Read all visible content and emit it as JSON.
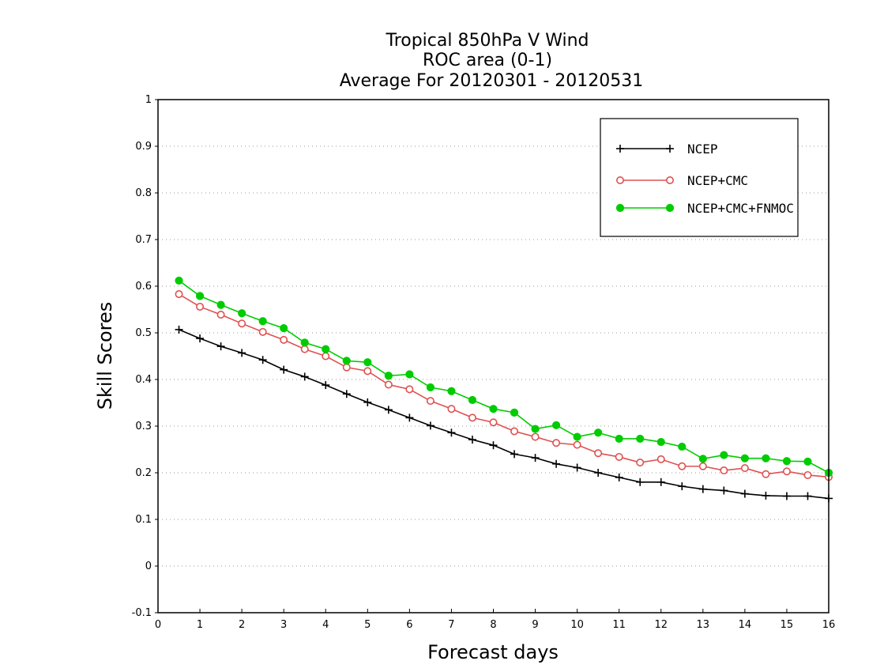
{
  "chart_data": {
    "type": "line",
    "title_lines": [
      "Tropical 850hPa V Wind",
      "ROC area (0-1)",
      "Average For 20120301 - 20120531"
    ],
    "xlabel": "Forecast days",
    "ylabel": "Skill Scores",
    "xlim": [
      0,
      16
    ],
    "ylim": [
      -0.1,
      1
    ],
    "x_ticks": [
      0,
      1,
      2,
      3,
      4,
      5,
      6,
      7,
      8,
      9,
      10,
      11,
      12,
      13,
      14,
      15,
      16
    ],
    "y_ticks": [
      -0.1,
      0,
      0.1,
      0.2,
      0.3,
      0.4,
      0.5,
      0.6,
      0.7,
      0.8,
      0.9,
      1
    ],
    "y_tick_labels": [
      "-0.1",
      "0",
      "0.1",
      "0.2",
      "0.3",
      "0.4",
      "0.5",
      "0.6",
      "0.7",
      "0.8",
      "0.9",
      "1"
    ],
    "grid": "horizontal dotted",
    "legend_position": "top-right",
    "x": [
      0.5,
      1,
      1.5,
      2,
      2.5,
      3,
      3.5,
      4,
      4.5,
      5,
      5.5,
      6,
      6.5,
      7,
      7.5,
      8,
      8.5,
      9,
      9.5,
      10,
      10.5,
      11,
      11.5,
      12,
      12.5,
      13,
      13.5,
      14,
      14.5,
      15,
      15.5,
      16
    ],
    "series": [
      {
        "name": "NCEP",
        "color": "#000000",
        "marker": "plus",
        "values": [
          0.507,
          0.488,
          0.471,
          0.457,
          0.442,
          0.421,
          0.406,
          0.388,
          0.369,
          0.351,
          0.335,
          0.318,
          0.301,
          0.286,
          0.271,
          0.259,
          0.24,
          0.232,
          0.219,
          0.211,
          0.2,
          0.19,
          0.18,
          0.18,
          0.171,
          0.165,
          0.162,
          0.155,
          0.151,
          0.15,
          0.15,
          0.145
        ]
      },
      {
        "name": "NCEP+CMC",
        "color": "#e05050",
        "marker": "open-circle",
        "values": [
          0.583,
          0.556,
          0.539,
          0.52,
          0.502,
          0.485,
          0.465,
          0.45,
          0.426,
          0.418,
          0.389,
          0.379,
          0.354,
          0.337,
          0.318,
          0.308,
          0.289,
          0.277,
          0.264,
          0.26,
          0.242,
          0.234,
          0.222,
          0.229,
          0.214,
          0.214,
          0.205,
          0.21,
          0.197,
          0.203,
          0.195,
          0.191
        ]
      },
      {
        "name": "NCEP+CMC+FNMOC",
        "color": "#00cc00",
        "marker": "filled-circle",
        "values": [
          0.612,
          0.579,
          0.56,
          0.542,
          0.525,
          0.51,
          0.479,
          0.465,
          0.44,
          0.437,
          0.408,
          0.411,
          0.383,
          0.375,
          0.356,
          0.337,
          0.329,
          0.294,
          0.302,
          0.277,
          0.286,
          0.273,
          0.273,
          0.266,
          0.256,
          0.23,
          0.238,
          0.231,
          0.231,
          0.225,
          0.224,
          0.2
        ]
      }
    ]
  }
}
